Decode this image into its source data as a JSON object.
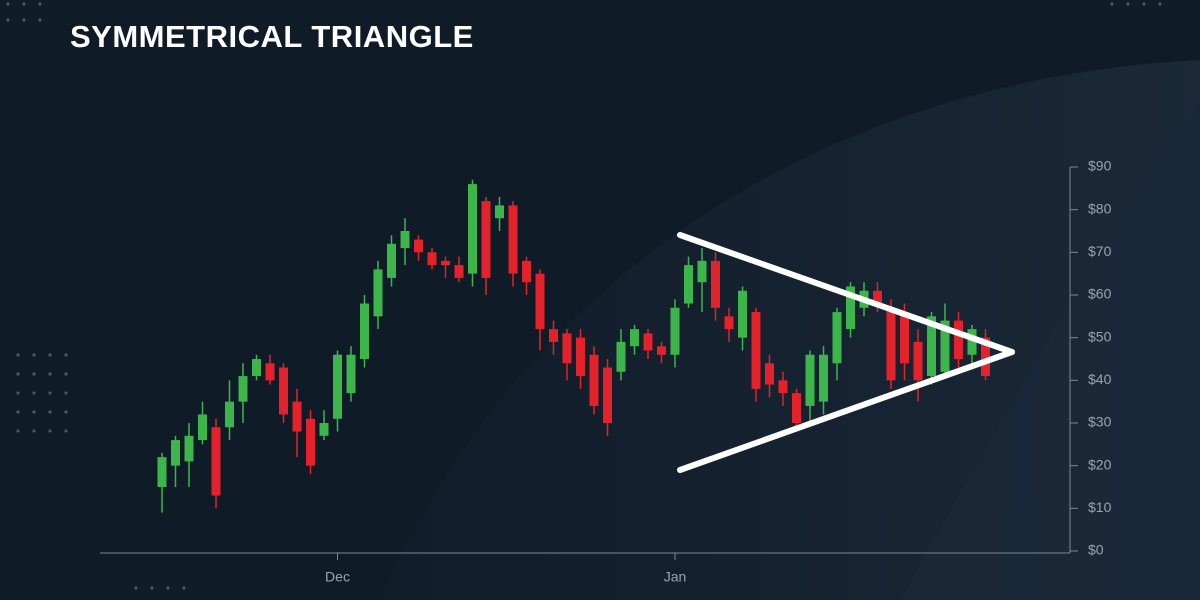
{
  "chart_data": {
    "type": "candlestick",
    "title": "SYMMETRICAL TRIANGLE",
    "categories": [
      null,
      null,
      null,
      null,
      null,
      null,
      null,
      null,
      null,
      null,
      null,
      null,
      null,
      "Dec",
      null,
      null,
      null,
      null,
      null,
      null,
      null,
      null,
      null,
      null,
      null,
      null,
      null,
      null,
      null,
      null,
      null,
      null,
      null,
      null,
      null,
      null,
      null,
      null,
      "Jan",
      null,
      null,
      null,
      null,
      null,
      null,
      null,
      null,
      null,
      null,
      null,
      null,
      null,
      null,
      null,
      null,
      null,
      null,
      null,
      null,
      null,
      null,
      null
    ],
    "open": [
      15,
      20,
      21,
      26,
      29,
      29,
      35,
      41,
      44,
      43,
      35,
      31,
      27,
      31,
      37,
      45,
      55,
      64,
      71,
      73,
      70,
      68,
      67,
      65,
      82,
      78,
      81,
      68,
      65,
      52,
      51,
      50,
      46,
      43,
      42,
      48,
      51,
      48,
      46,
      58,
      63,
      68,
      55,
      50,
      56,
      44,
      40,
      37,
      34,
      35,
      44,
      52,
      57,
      61,
      57,
      55,
      49,
      41,
      42,
      54,
      46,
      50
    ],
    "high": [
      23,
      27,
      30,
      35,
      31,
      40,
      44,
      46,
      46,
      44,
      38,
      33,
      33,
      47,
      48,
      60,
      68,
      74,
      78,
      74,
      71,
      69,
      69,
      87,
      83,
      83,
      82,
      69,
      66,
      54,
      52,
      52,
      48,
      45,
      52,
      53,
      52,
      49,
      59,
      69,
      71,
      70,
      57,
      62,
      57,
      46,
      42,
      38,
      47,
      48,
      57,
      63,
      63,
      63,
      59,
      58,
      52,
      56,
      58,
      56,
      53,
      52
    ],
    "low": [
      9,
      15,
      15,
      25,
      10,
      26,
      30,
      40,
      39,
      30,
      22,
      18,
      26,
      28,
      35,
      43,
      52,
      62,
      67,
      68,
      66,
      64,
      63,
      62,
      60,
      75,
      62,
      60,
      47,
      46,
      40,
      38,
      32,
      27,
      40,
      46,
      45,
      44,
      43,
      57,
      56,
      54,
      49,
      47,
      35,
      36,
      34,
      28,
      30,
      32,
      40,
      50,
      55,
      56,
      38,
      40,
      35,
      39,
      41,
      43,
      44,
      40
    ],
    "close": [
      22,
      26,
      27,
      32,
      13,
      35,
      41,
      45,
      40,
      32,
      28,
      20,
      30,
      46,
      46,
      58,
      66,
      72,
      75,
      70,
      67,
      67,
      64,
      86,
      64,
      81,
      65,
      63,
      52,
      49,
      44,
      41,
      34,
      30,
      49,
      52,
      47,
      46,
      57,
      67,
      68,
      57,
      52,
      61,
      38,
      39,
      37,
      30,
      46,
      46,
      56,
      62,
      61,
      58,
      40,
      44,
      40,
      55,
      54,
      45,
      52,
      41
    ],
    "up_color": "#3cb64a",
    "down_color": "#e3222b",
    "ylim": [
      0,
      90
    ],
    "yticks": [
      {
        "value": 0,
        "label": "$0"
      },
      {
        "value": 10,
        "label": "$10"
      },
      {
        "value": 20,
        "label": "$20"
      },
      {
        "value": 30,
        "label": "$30"
      },
      {
        "value": 40,
        "label": "$40"
      },
      {
        "value": 50,
        "label": "$50"
      },
      {
        "value": 60,
        "label": "$60"
      },
      {
        "value": 70,
        "label": "$70"
      },
      {
        "value": 80,
        "label": "$80"
      },
      {
        "value": 90,
        "label": "$90"
      }
    ]
  }
}
